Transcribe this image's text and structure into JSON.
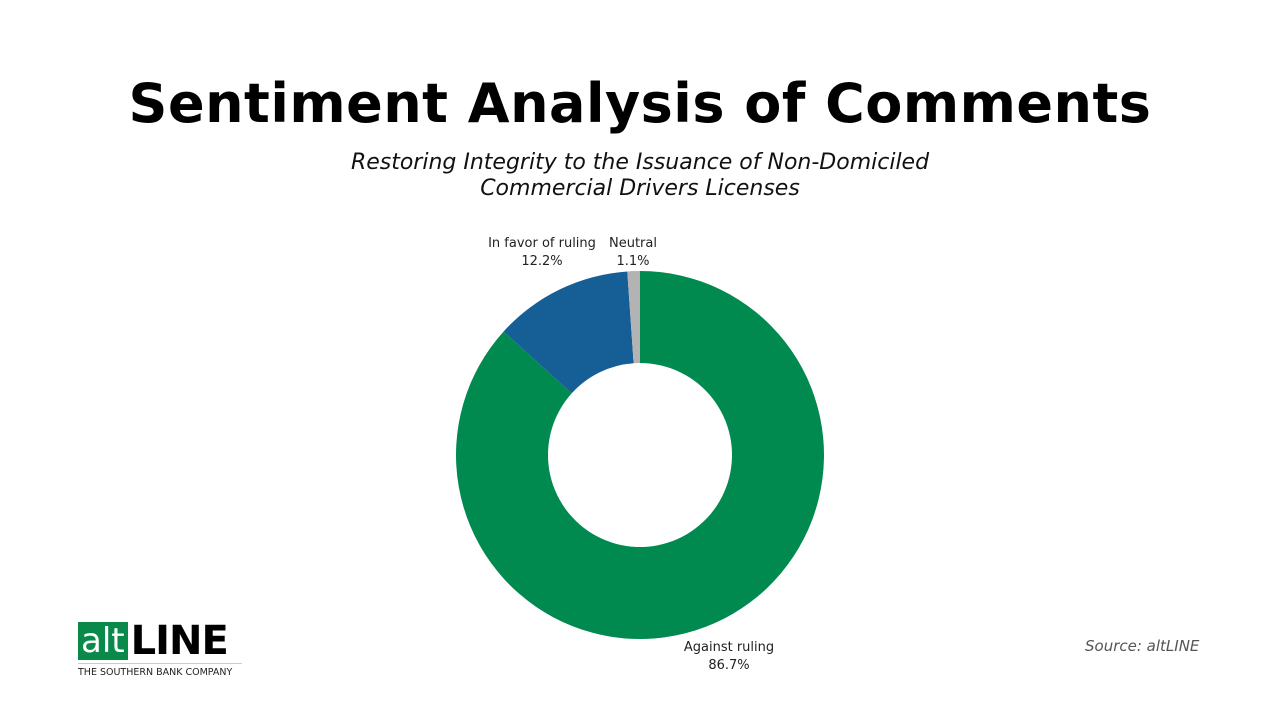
{
  "chart_data": {
    "type": "pie",
    "variant": "donut",
    "title": "Sentiment Analysis of Comments",
    "subtitle": "Restoring Integrity to the Issuance of Non-Domiciled Commercial Drivers Licenses",
    "slices": [
      {
        "label": "Against ruling",
        "value": 86.7,
        "display": "86.7%",
        "color": "#008a50"
      },
      {
        "label": "In favor of ruling",
        "value": 12.2,
        "display": "12.2%",
        "color": "#165f96"
      },
      {
        "label": "Neutral",
        "value": 1.1,
        "display": "1.1%",
        "color": "#b3b3b3"
      }
    ],
    "start_angle": "top",
    "direction": "clockwise"
  },
  "source": "Source: altLINE",
  "logo": {
    "alt": "alt",
    "line": "LINE",
    "tagline": "THE SOUTHERN BANK COMPANY"
  }
}
